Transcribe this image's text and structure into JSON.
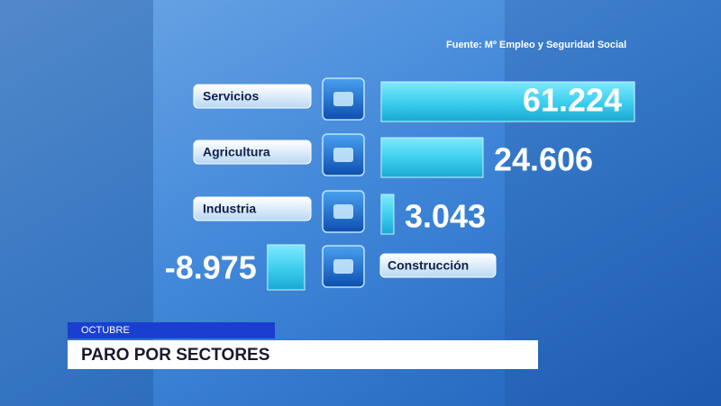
{
  "chart_data": {
    "type": "bar",
    "source": "Fuente:  Mº Empleo y Seguridad Social",
    "subtitle": "OCTUBRE",
    "title": "PARO POR SECTORES",
    "categories": [
      "Servicios",
      "Agricultura",
      "Industria",
      "Construcción"
    ],
    "values": [
      61224,
      24606,
      3043,
      -8975
    ],
    "value_labels": [
      "61.224",
      "24.606",
      "3.043",
      "-8.975"
    ],
    "color": "#3fd0ee"
  }
}
